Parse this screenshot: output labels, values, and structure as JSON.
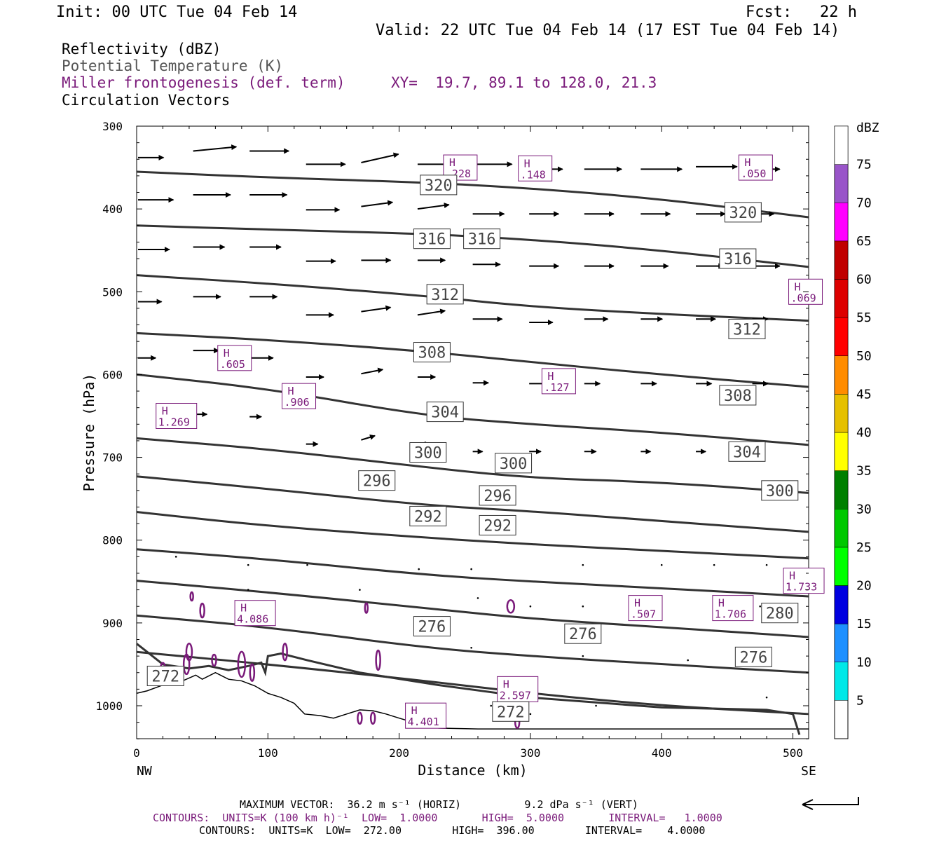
{
  "header": {
    "init": "Init: 00 UTC Tue 04 Feb 14",
    "fcst": "Fcst:   22 h",
    "valid": "Valid: 22 UTC Tue 04 Feb 14 (17 EST Tue 04 Feb 14)"
  },
  "legend": {
    "reflectivity": "Reflectivity (dBZ)",
    "theta": "Potential Temperature (K)",
    "frontogenesis": "Miller frontogenesis (def. term)",
    "xy": "XY=  19.7, 89.1 to 128.0, 21.3",
    "circulation": "Circulation Vectors"
  },
  "footer": {
    "max_vector": "MAXIMUM VECTOR:  36.2 m s⁻¹ (HORIZ)          9.2 dPa s⁻¹ (VERT)",
    "contours_purple": "CONTOURS:  UNITS=K (100 km h)⁻¹  LOW=  1.0000       HIGH=  5.0000       INTERVAL=   1.0000",
    "contours_black": "CONTOURS:  UNITS=K  LOW=  272.00        HIGH=  396.00        INTERVAL=    4.0000"
  },
  "colors": {
    "theta_line": "#333333",
    "fronto": "#7a1a7a",
    "vector": "#000000"
  },
  "chart_data": {
    "type": "line",
    "title": "",
    "xlabel": "Distance (km)",
    "ylabel": "Pressure (hPa)",
    "xlim": [
      0,
      512
    ],
    "ylim": [
      1040,
      300
    ],
    "x_ticks": [
      0,
      100,
      200,
      300,
      400,
      500
    ],
    "y_ticks": [
      300,
      400,
      500,
      600,
      700,
      800,
      900,
      1000
    ],
    "x_end_labels": {
      "left": "NW",
      "right": "SE"
    },
    "theta_contours": [
      {
        "value": 320,
        "label": "320",
        "points": [
          [
            0,
            355
          ],
          [
            100,
            362
          ],
          [
            220,
            368
          ],
          [
            300,
            375
          ],
          [
            400,
            388
          ],
          [
            512,
            410
          ]
        ]
      },
      {
        "value": 316,
        "label": "316",
        "points": [
          [
            0,
            420
          ],
          [
            100,
            425
          ],
          [
            220,
            430
          ],
          [
            300,
            437
          ],
          [
            400,
            450
          ],
          [
            512,
            470
          ]
        ]
      },
      {
        "value": 312,
        "label": "312",
        "points": [
          [
            0,
            480
          ],
          [
            100,
            490
          ],
          [
            220,
            505
          ],
          [
            300,
            518
          ],
          [
            400,
            527
          ],
          [
            512,
            535
          ]
        ]
      },
      {
        "value": 308,
        "label": "308",
        "points": [
          [
            0,
            550
          ],
          [
            100,
            558
          ],
          [
            220,
            572
          ],
          [
            300,
            585
          ],
          [
            400,
            600
          ],
          [
            512,
            615
          ]
        ]
      },
      {
        "value": 304,
        "label": "304",
        "points": [
          [
            0,
            600
          ],
          [
            100,
            617
          ],
          [
            220,
            650
          ],
          [
            300,
            660
          ],
          [
            400,
            670
          ],
          [
            512,
            685
          ]
        ]
      },
      {
        "value": 300,
        "label": "300",
        "points": [
          [
            0,
            677
          ],
          [
            100,
            690
          ],
          [
            220,
            712
          ],
          [
            300,
            725
          ],
          [
            400,
            730
          ],
          [
            512,
            743
          ]
        ]
      },
      {
        "value": 296,
        "label": "296",
        "points": [
          [
            0,
            723
          ],
          [
            100,
            738
          ],
          [
            220,
            758
          ],
          [
            300,
            765
          ],
          [
            400,
            777
          ],
          [
            512,
            790
          ]
        ]
      },
      {
        "value": 292,
        "label": "292",
        "points": [
          [
            0,
            766
          ],
          [
            100,
            783
          ],
          [
            220,
            797
          ],
          [
            300,
            805
          ],
          [
            400,
            813
          ],
          [
            512,
            822
          ]
        ]
      },
      {
        "value": 288,
        "label": "",
        "points": [
          [
            0,
            811
          ],
          [
            100,
            823
          ],
          [
            220,
            842
          ],
          [
            300,
            850
          ],
          [
            400,
            858
          ],
          [
            512,
            868
          ]
        ]
      },
      {
        "value": 284,
        "label": "",
        "points": [
          [
            0,
            849
          ],
          [
            100,
            863
          ],
          [
            220,
            882
          ],
          [
            300,
            895
          ],
          [
            400,
            905
          ],
          [
            512,
            917
          ]
        ]
      },
      {
        "value": 280,
        "label": "280",
        "points": [
          [
            0,
            891
          ],
          [
            100,
            905
          ],
          [
            220,
            930
          ],
          [
            300,
            940
          ],
          [
            400,
            950
          ],
          [
            512,
            960
          ]
        ]
      },
      {
        "value": 276,
        "label": "276",
        "points": [
          [
            0,
            935
          ],
          [
            100,
            950
          ],
          [
            220,
            970
          ],
          [
            300,
            985
          ],
          [
            400,
            1000
          ],
          [
            512,
            1010
          ]
        ]
      }
    ],
    "theta_labels": [
      {
        "text": "320",
        "x": 230,
        "p": 371
      },
      {
        "text": "320",
        "x": 462,
        "p": 404
      },
      {
        "text": "316",
        "x": 225,
        "p": 436
      },
      {
        "text": "316",
        "x": 263,
        "p": 436
      },
      {
        "text": "316",
        "x": 458,
        "p": 460
      },
      {
        "text": "312",
        "x": 235,
        "p": 503
      },
      {
        "text": "312",
        "x": 465,
        "p": 545
      },
      {
        "text": "308",
        "x": 225,
        "p": 573
      },
      {
        "text": "308",
        "x": 458,
        "p": 625
      },
      {
        "text": "304",
        "x": 235,
        "p": 645
      },
      {
        "text": "304",
        "x": 465,
        "p": 693
      },
      {
        "text": "300",
        "x": 222,
        "p": 694
      },
      {
        "text": "300",
        "x": 287,
        "p": 707
      },
      {
        "text": "300",
        "x": 490,
        "p": 740
      },
      {
        "text": "296",
        "x": 183,
        "p": 728
      },
      {
        "text": "296",
        "x": 275,
        "p": 746
      },
      {
        "text": "292",
        "x": 222,
        "p": 771
      },
      {
        "text": "292",
        "x": 275,
        "p": 782
      },
      {
        "text": "280",
        "x": 490,
        "p": 888
      },
      {
        "text": "276",
        "x": 225,
        "p": 904
      },
      {
        "text": "276",
        "x": 340,
        "p": 913
      },
      {
        "text": "276",
        "x": 470,
        "p": 941
      },
      {
        "text": "272",
        "x": 22,
        "p": 964
      },
      {
        "text": "272",
        "x": 285,
        "p": 1007
      }
    ],
    "fronto_highs": [
      {
        "label": "H",
        "value": ".228",
        "x": 237,
        "p": 350
      },
      {
        "label": "H",
        "value": ".148",
        "x": 294,
        "p": 351
      },
      {
        "label": "H",
        "value": ".050",
        "x": 462,
        "p": 350
      },
      {
        "label": "H",
        "value": ".069",
        "x": 500,
        "p": 500
      },
      {
        "label": "H",
        "value": ".605",
        "x": 65,
        "p": 580
      },
      {
        "label": "H",
        "value": ".127",
        "x": 312,
        "p": 608
      },
      {
        "label": "H",
        "value": ".906",
        "x": 114,
        "p": 626
      },
      {
        "label": "H",
        "value": "1.269",
        "x": 18,
        "p": 650
      },
      {
        "label": "H",
        "value": "1.733",
        "x": 496,
        "p": 849
      },
      {
        "label": "H",
        "value": "4.086",
        "x": 78,
        "p": 888
      },
      {
        "label": "H",
        "value": ".507",
        "x": 378,
        "p": 882
      },
      {
        "label": "H",
        "value": "1.706",
        "x": 442,
        "p": 882
      },
      {
        "label": "H",
        "value": "2.597",
        "x": 278,
        "p": 980
      },
      {
        "label": "H",
        "value": "4.401",
        "x": 208,
        "p": 1012
      }
    ],
    "vectors": [
      {
        "x": 0,
        "p": 338,
        "u": 26,
        "w": 0
      },
      {
        "x": 42,
        "p": 330,
        "u": 44,
        "w": 1
      },
      {
        "x": 85,
        "p": 330,
        "u": 40,
        "w": 0
      },
      {
        "x": 128,
        "p": 346,
        "u": 40,
        "w": 0
      },
      {
        "x": 170,
        "p": 344,
        "u": 38,
        "w": 2
      },
      {
        "x": 213,
        "p": 346,
        "u": 40,
        "w": 0
      },
      {
        "x": 255,
        "p": 346,
        "u": 40,
        "w": 0
      },
      {
        "x": 298,
        "p": 352,
        "u": 34,
        "w": 0
      },
      {
        "x": 340,
        "p": 352,
        "u": 38,
        "w": 0
      },
      {
        "x": 383,
        "p": 352,
        "u": 42,
        "w": 0
      },
      {
        "x": 425,
        "p": 349,
        "u": 42,
        "w": 0
      },
      {
        "x": 468,
        "p": 352,
        "u": 28,
        "w": 0
      },
      {
        "x": 0,
        "p": 389,
        "u": 36,
        "w": 0
      },
      {
        "x": 42,
        "p": 383,
        "u": 38,
        "w": 0
      },
      {
        "x": 85,
        "p": 383,
        "u": 38,
        "w": 0
      },
      {
        "x": 128,
        "p": 401,
        "u": 34,
        "w": 0
      },
      {
        "x": 170,
        "p": 397,
        "u": 32,
        "w": 1
      },
      {
        "x": 213,
        "p": 400,
        "u": 32,
        "w": 1
      },
      {
        "x": 255,
        "p": 406,
        "u": 32,
        "w": 0
      },
      {
        "x": 298,
        "p": 406,
        "u": 30,
        "w": 0
      },
      {
        "x": 340,
        "p": 406,
        "u": 30,
        "w": 0
      },
      {
        "x": 383,
        "p": 406,
        "u": 30,
        "w": 0
      },
      {
        "x": 425,
        "p": 406,
        "u": 30,
        "w": 0
      },
      {
        "x": 468,
        "p": 406,
        "u": 22,
        "w": 0
      },
      {
        "x": 0,
        "p": 449,
        "u": 32,
        "w": 0
      },
      {
        "x": 42,
        "p": 446,
        "u": 32,
        "w": 0
      },
      {
        "x": 85,
        "p": 446,
        "u": 32,
        "w": 0
      },
      {
        "x": 128,
        "p": 463,
        "u": 30,
        "w": 0
      },
      {
        "x": 170,
        "p": 462,
        "u": 30,
        "w": 0
      },
      {
        "x": 213,
        "p": 462,
        "u": 28,
        "w": 0
      },
      {
        "x": 255,
        "p": 467,
        "u": 28,
        "w": 0
      },
      {
        "x": 298,
        "p": 469,
        "u": 30,
        "w": 0
      },
      {
        "x": 340,
        "p": 469,
        "u": 30,
        "w": 0
      },
      {
        "x": 383,
        "p": 469,
        "u": 28,
        "w": 0
      },
      {
        "x": 425,
        "p": 469,
        "u": 28,
        "w": 0
      },
      {
        "x": 468,
        "p": 469,
        "u": 28,
        "w": 0
      },
      {
        "x": 0,
        "p": 512,
        "u": 24,
        "w": 0
      },
      {
        "x": 42,
        "p": 506,
        "u": 28,
        "w": 0
      },
      {
        "x": 85,
        "p": 506,
        "u": 28,
        "w": 0
      },
      {
        "x": 128,
        "p": 528,
        "u": 28,
        "w": 0
      },
      {
        "x": 170,
        "p": 524,
        "u": 30,
        "w": 1
      },
      {
        "x": 213,
        "p": 528,
        "u": 28,
        "w": 1
      },
      {
        "x": 255,
        "p": 533,
        "u": 30,
        "w": 0
      },
      {
        "x": 298,
        "p": 537,
        "u": 24,
        "w": 0
      },
      {
        "x": 340,
        "p": 533,
        "u": 24,
        "w": 0
      },
      {
        "x": 383,
        "p": 533,
        "u": 22,
        "w": 0
      },
      {
        "x": 425,
        "p": 533,
        "u": 20,
        "w": 0
      },
      {
        "x": 468,
        "p": 533,
        "u": 16,
        "w": 0
      },
      {
        "x": 0,
        "p": 580,
        "u": 18,
        "w": 0
      },
      {
        "x": 42,
        "p": 571,
        "u": 26,
        "w": 0
      },
      {
        "x": 85,
        "p": 580,
        "u": 24,
        "w": 0
      },
      {
        "x": 128,
        "p": 603,
        "u": 18,
        "w": 0
      },
      {
        "x": 170,
        "p": 599,
        "u": 22,
        "w": 1
      },
      {
        "x": 213,
        "p": 603,
        "u": 18,
        "w": 0
      },
      {
        "x": 255,
        "p": 610,
        "u": 16,
        "w": 0
      },
      {
        "x": 298,
        "p": 611,
        "u": 18,
        "w": 0
      },
      {
        "x": 340,
        "p": 611,
        "u": 16,
        "w": 0
      },
      {
        "x": 383,
        "p": 611,
        "u": 16,
        "w": 0
      },
      {
        "x": 425,
        "p": 611,
        "u": 16,
        "w": 0
      },
      {
        "x": 468,
        "p": 611,
        "u": 16,
        "w": 0
      },
      {
        "x": 42,
        "p": 648,
        "u": 14,
        "w": 0
      },
      {
        "x": 85,
        "p": 651,
        "u": 12,
        "w": 0
      },
      {
        "x": 128,
        "p": 684,
        "u": 12,
        "w": 0
      },
      {
        "x": 170,
        "p": 679,
        "u": 14,
        "w": 1
      },
      {
        "x": 213,
        "p": 684,
        "u": 12,
        "w": 0
      },
      {
        "x": 255,
        "p": 693,
        "u": 10,
        "w": 0
      },
      {
        "x": 298,
        "p": 693,
        "u": 12,
        "w": 0
      },
      {
        "x": 340,
        "p": 693,
        "u": 12,
        "w": 0
      },
      {
        "x": 383,
        "p": 693,
        "u": 10,
        "w": 0
      },
      {
        "x": 425,
        "p": 693,
        "u": 10,
        "w": 0
      },
      {
        "x": 468,
        "p": 693,
        "u": 10,
        "w": 0
      }
    ],
    "colorbar": {
      "unit": "dBZ",
      "labels": [
        "5",
        "10",
        "15",
        "20",
        "25",
        "30",
        "35",
        "40",
        "45",
        "50",
        "55",
        "60",
        "65",
        "70",
        "75"
      ],
      "colors": [
        "#00e8e8",
        "#1e90ff",
        "#0000e0",
        "#00ff00",
        "#00c800",
        "#007f00",
        "#ffff00",
        "#e6c000",
        "#ff8c00",
        "#ff0000",
        "#dd0000",
        "#c00000",
        "#ff00ff",
        "#9955c9",
        "#ffffff"
      ]
    }
  }
}
